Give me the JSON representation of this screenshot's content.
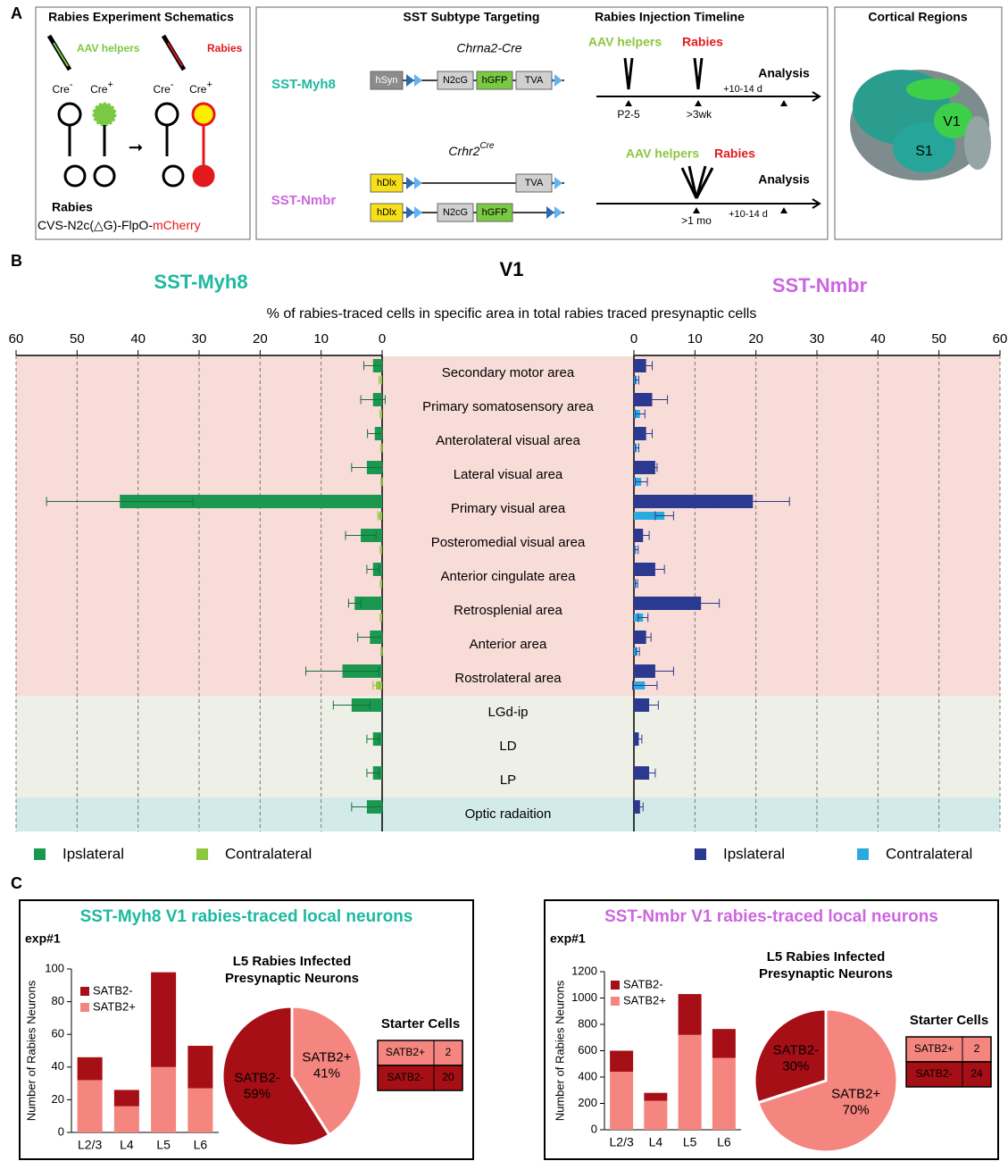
{
  "panel_labels": [
    "A",
    "B",
    "C"
  ],
  "schematic": {
    "title": "Rabies Experiment Schematics",
    "aav_label": "AAV helpers",
    "rabies_label": "Rabies",
    "cells": [
      {
        "label": "Cre",
        "sign": "-"
      },
      {
        "label": "Cre",
        "sign": "+"
      },
      {
        "label": "Cre",
        "sign": "-"
      },
      {
        "label": "Cre",
        "sign": "+"
      }
    ],
    "arrow": "➞",
    "virus_title": "Rabies",
    "virus_name": "CVS-N2c(△G)-FlpO-",
    "virus_reporter": "mCherry"
  },
  "targeting": {
    "title": "SST Subtype Targeting",
    "lines": [
      {
        "name": "SST-Myh8",
        "driver": "Chrna2-Cre",
        "driver_sup": "",
        "constructs": [
          [
            {
              "text": "hSyn",
              "color": "#8c8c8c"
            },
            {
              "text": "N2cG",
              "color": "#d0d0d0"
            },
            {
              "text": "hGFP",
              "color": "#7ac943"
            },
            {
              "text": "TVA",
              "color": "#d0d0d0"
            }
          ]
        ]
      },
      {
        "name": "SST-Nmbr",
        "driver": "Crhr2",
        "driver_sup": "Cre",
        "constructs": [
          [
            {
              "text": "hDlx",
              "color": "#f7e017"
            },
            {
              "text": "TVA",
              "color": "#d0d0d0"
            }
          ],
          [
            {
              "text": "hDlx",
              "color": "#f7e017"
            },
            {
              "text": "N2cG",
              "color": "#d0d0d0"
            },
            {
              "text": "hGFP",
              "color": "#7ac943"
            }
          ]
        ]
      }
    ]
  },
  "timeline": {
    "title": "Rabies Injection Timeline",
    "rows": [
      {
        "aav": "AAV helpers",
        "rabies": "Rabies",
        "analysis": "Analysis",
        "times": [
          "P2-5",
          ">3wk",
          "+10-14 d"
        ]
      },
      {
        "aav": "AAV helpers",
        "rabies": "Rabies",
        "analysis": "Analysis",
        "times": [
          ">1 mo",
          "+10-14 d"
        ]
      }
    ]
  },
  "regions": {
    "title": "Cortical Regions",
    "labels": [
      "V1",
      "S1"
    ]
  },
  "chart_data": [
    {
      "type": "butterfly",
      "title": "V1",
      "subtitle": "% of rabies-traced cells in specific area in total rabies traced presynaptic cells",
      "categories": [
        "Secondary motor area",
        "Primary somatosensory area",
        "Anterolateral visual area",
        "Lateral visual area",
        "Primary visual area",
        "Posteromedial visual area",
        "Anterior cingulate area",
        "Retrosplenial area",
        "Anterior area",
        "Rostrolateral area",
        "LGd-ip",
        "LD",
        "LP",
        "Optic radaition"
      ],
      "xlim": [
        0,
        60
      ],
      "xticks": [
        0,
        10,
        20,
        30,
        40,
        50,
        60
      ],
      "grid": true,
      "sides": [
        {
          "name": "SST-Myh8",
          "color": "#1db9a0",
          "series": [
            {
              "name": "Ipslateral",
              "color": "#1a9850",
              "values": [
                1.5,
                1.5,
                1.2,
                2.5,
                43,
                3.5,
                1.5,
                4.5,
                2,
                6.5,
                5,
                1.5,
                1.5,
                2.5
              ],
              "errors": [
                1.5,
                2,
                1.2,
                2.5,
                12,
                2.5,
                1,
                1,
                2,
                6,
                3,
                1,
                1,
                2.5
              ]
            },
            {
              "name": "Contralateral",
              "color": "#8dc63f",
              "values": [
                0.3,
                0.2,
                0.1,
                0.1,
                0.5,
                0.2,
                0.2,
                0.2,
                0.1,
                1,
                null,
                null,
                null,
                null
              ],
              "errors": [
                0.2,
                0.1,
                0.1,
                0.1,
                0.2,
                0.1,
                0.1,
                0.1,
                0.1,
                0.5,
                null,
                null,
                null,
                null
              ]
            }
          ]
        },
        {
          "name": "SST-Nmbr",
          "color": "#cc66e0",
          "series": [
            {
              "name": "Ipslateral",
              "color": "#2b3990",
              "values": [
                2,
                3,
                2,
                3.5,
                19.5,
                1.5,
                3.5,
                11,
                2,
                3.5,
                2.5,
                0.8,
                2.5,
                1
              ],
              "errors": [
                1,
                2.5,
                1,
                0.3,
                6,
                1,
                1.5,
                3,
                0.8,
                3,
                1.5,
                0.5,
                1,
                0.5
              ]
            },
            {
              "name": "Contralateral",
              "color": "#29abe2",
              "values": [
                0.5,
                1,
                0.5,
                1.2,
                5,
                0.4,
                0.4,
                1.5,
                0.6,
                1.8,
                null,
                null,
                null,
                null
              ],
              "errors": [
                0.3,
                0.8,
                0.3,
                1,
                1.5,
                0.3,
                0.2,
                0.8,
                0.3,
                2,
                null,
                null,
                null,
                null
              ]
            }
          ]
        }
      ]
    },
    {
      "type": "bar",
      "stacked": true,
      "categories": [
        "L2/3",
        "L4",
        "L5",
        "L6"
      ],
      "ylabel": "Number of Rabies Neurons",
      "ylim": [
        0,
        100
      ],
      "yticks": [
        0,
        20,
        40,
        60,
        80,
        100
      ],
      "series": [
        {
          "name": "SATB2+",
          "color": "#f4857f",
          "values": [
            32,
            16,
            40,
            27
          ]
        },
        {
          "name": "SATB2-",
          "color": "#a50f15",
          "values": [
            14,
            10,
            58,
            26
          ]
        }
      ]
    },
    {
      "type": "pie",
      "title": [
        "L5 Rabies Infected",
        "Presynaptic Neurons"
      ],
      "categories": [
        "SATB2+",
        "SATB2-"
      ],
      "values": [
        41,
        59
      ],
      "value_labels": [
        "41%",
        "59%"
      ],
      "colors": [
        "#f4857f",
        "#a50f15"
      ]
    },
    {
      "type": "bar",
      "stacked": true,
      "categories": [
        "L2/3",
        "L4",
        "L5",
        "L6"
      ],
      "ylabel": "Number of Rabies Neurons",
      "ylim": [
        0,
        1200
      ],
      "yticks": [
        0,
        200,
        400,
        600,
        800,
        1000,
        1200
      ],
      "series": [
        {
          "name": "SATB2+",
          "color": "#f4857f",
          "values": [
            440,
            220,
            720,
            545
          ]
        },
        {
          "name": "SATB2-",
          "color": "#a50f15",
          "values": [
            160,
            60,
            310,
            220
          ]
        }
      ]
    },
    {
      "type": "pie",
      "title": [
        "L5 Rabies Infected",
        "Presynaptic Neurons"
      ],
      "categories": [
        "SATB2+",
        "SATB2-"
      ],
      "values": [
        70,
        30
      ],
      "value_labels": [
        "70%",
        "30%"
      ],
      "colors": [
        "#f4857f",
        "#a50f15"
      ]
    }
  ],
  "panel_c": [
    {
      "title": "SST-Myh8 V1 rabies-traced local neurons",
      "color": "#1db9a0",
      "experiment": "exp#1",
      "starter_title": "Starter Cells",
      "starter_rows": [
        [
          "SATB2+",
          2
        ],
        [
          "SATB2-",
          20
        ]
      ]
    },
    {
      "title": "SST-Nmbr V1 rabies-traced local neurons",
      "color": "#cc66e0",
      "experiment": "exp#1",
      "starter_title": "Starter Cells",
      "starter_rows": [
        [
          "SATB2+",
          2
        ],
        [
          "SATB2-",
          24
        ]
      ]
    }
  ]
}
